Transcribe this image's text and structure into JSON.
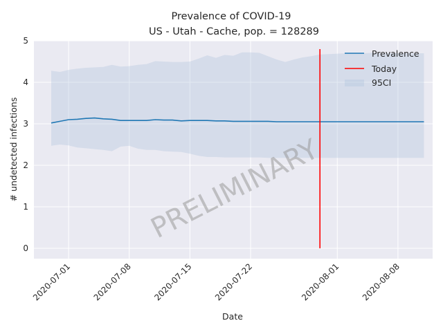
{
  "chart_data": {
    "type": "line",
    "title_line1": "Prevalence of COVID-19",
    "title_line2": "US - Utah - Cache, pop. = 128289",
    "xlabel": "Date",
    "ylabel": "# undetected infections",
    "watermark": "PRELIMINARY",
    "xlim": [
      "2020-06-27",
      "2020-08-12"
    ],
    "ylim": [
      -0.25,
      5
    ],
    "yticks": [
      0,
      1,
      2,
      3,
      4,
      5
    ],
    "xtick_labels": [
      "2020-07-01",
      "2020-07-08",
      "2020-07-15",
      "2020-07-22",
      "2020-08-01",
      "2020-08-08"
    ],
    "grid": true,
    "legend_position": "top-right",
    "series": [
      {
        "name": "Prevalence",
        "color": "#1f77b4",
        "x": [
          "2020-06-29",
          "2020-06-30",
          "2020-07-01",
          "2020-07-02",
          "2020-07-03",
          "2020-07-04",
          "2020-07-05",
          "2020-07-06",
          "2020-07-07",
          "2020-07-08",
          "2020-07-09",
          "2020-07-10",
          "2020-07-11",
          "2020-07-12",
          "2020-07-13",
          "2020-07-14",
          "2020-07-15",
          "2020-07-16",
          "2020-07-17",
          "2020-07-18",
          "2020-07-19",
          "2020-07-20",
          "2020-07-21",
          "2020-07-22",
          "2020-07-23",
          "2020-07-24",
          "2020-07-25",
          "2020-07-26",
          "2020-07-27",
          "2020-07-28",
          "2020-07-29",
          "2020-07-30",
          "2020-07-31",
          "2020-08-01",
          "2020-08-02",
          "2020-08-03",
          "2020-08-04",
          "2020-08-05",
          "2020-08-06",
          "2020-08-07",
          "2020-08-08",
          "2020-08-09",
          "2020-08-10",
          "2020-08-11"
        ],
        "values": [
          3.02,
          3.06,
          3.1,
          3.11,
          3.13,
          3.14,
          3.12,
          3.11,
          3.08,
          3.08,
          3.08,
          3.08,
          3.1,
          3.09,
          3.09,
          3.07,
          3.08,
          3.08,
          3.08,
          3.07,
          3.07,
          3.06,
          3.06,
          3.06,
          3.06,
          3.06,
          3.05,
          3.05,
          3.05,
          3.05,
          3.05,
          3.05,
          3.05,
          3.05,
          3.05,
          3.05,
          3.05,
          3.05,
          3.05,
          3.05,
          3.05,
          3.05,
          3.05,
          3.05
        ]
      }
    ],
    "band": {
      "name": "95CI",
      "color": "#b0c4de",
      "x": [
        "2020-06-29",
        "2020-06-30",
        "2020-07-01",
        "2020-07-02",
        "2020-07-03",
        "2020-07-04",
        "2020-07-05",
        "2020-07-06",
        "2020-07-07",
        "2020-07-08",
        "2020-07-09",
        "2020-07-10",
        "2020-07-11",
        "2020-07-12",
        "2020-07-13",
        "2020-07-14",
        "2020-07-15",
        "2020-07-16",
        "2020-07-17",
        "2020-07-18",
        "2020-07-19",
        "2020-07-20",
        "2020-07-21",
        "2020-07-22",
        "2020-07-23",
        "2020-07-24",
        "2020-07-25",
        "2020-07-26",
        "2020-07-27",
        "2020-07-28",
        "2020-07-29",
        "2020-07-30",
        "2020-07-31",
        "2020-08-01",
        "2020-08-02",
        "2020-08-03",
        "2020-08-04",
        "2020-08-05",
        "2020-08-06",
        "2020-08-07",
        "2020-08-08",
        "2020-08-09",
        "2020-08-10",
        "2020-08-11"
      ],
      "lower": [
        2.47,
        2.5,
        2.48,
        2.43,
        2.41,
        2.39,
        2.37,
        2.34,
        2.45,
        2.47,
        2.4,
        2.37,
        2.37,
        2.34,
        2.33,
        2.32,
        2.28,
        2.23,
        2.2,
        2.2,
        2.19,
        2.19,
        2.19,
        2.19,
        2.19,
        2.18,
        2.18,
        2.18,
        2.18,
        2.18,
        2.18,
        2.18,
        2.18,
        2.18,
        2.18,
        2.18,
        2.18,
        2.18,
        2.18,
        2.18,
        2.18,
        2.18,
        2.18,
        2.18
      ],
      "upper": [
        4.28,
        4.25,
        4.3,
        4.33,
        4.35,
        4.36,
        4.37,
        4.42,
        4.38,
        4.39,
        4.42,
        4.44,
        4.51,
        4.5,
        4.49,
        4.49,
        4.5,
        4.57,
        4.65,
        4.59,
        4.66,
        4.64,
        4.72,
        4.72,
        4.71,
        4.63,
        4.55,
        4.49,
        4.55,
        4.6,
        4.63,
        4.67,
        4.68,
        4.69,
        4.7,
        4.7,
        4.7,
        4.71,
        4.7,
        4.7,
        4.7,
        4.7,
        4.7,
        4.7
      ]
    },
    "today": {
      "name": "Today",
      "date": "2020-07-30",
      "y_range": [
        0,
        4.8
      ],
      "color": "#ff0000"
    }
  }
}
